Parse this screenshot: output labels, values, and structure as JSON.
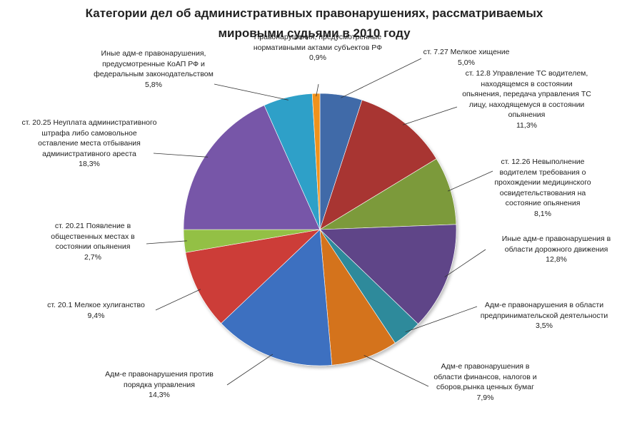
{
  "chart_data": {
    "type": "pie",
    "title_line1": "Категории дел об административных правонарушениях, рассматриваемых",
    "title_line2": "мировыми судьями в 2010 году",
    "slices": [
      {
        "label": "ст. 7.27 Мелкое хищение",
        "value": 5.0,
        "value_label": "5,0%",
        "color": "#3f6aa8"
      },
      {
        "label": "ст. 12.8 Управление ТС водителем, находящемся в состоянии опьянения, передача управления ТС лицу, находящемуся в состоянии опьянения",
        "value": 11.3,
        "value_label": "11,3%",
        "color": "#a83432"
      },
      {
        "label": "ст. 12.26 Невыполнение водителем требования о прохождении медицинского освидетельствования на состояние опьянения",
        "value": 8.1,
        "value_label": "8,1%",
        "color": "#7b9a3a"
      },
      {
        "label": "Иные адм-е правонарушения в области дорожного движения",
        "value": 12.8,
        "value_label": "12,8%",
        "color": "#5e4488"
      },
      {
        "label": "Адм-е правонарушения в области предпринимательской деятельности",
        "value": 3.5,
        "value_label": "3,5%",
        "color": "#2f8a9b"
      },
      {
        "label": "Адм-е правонарушения в области финансов, налогов и сборов,рынка ценных бумаг",
        "value": 7.9,
        "value_label": "7,9%",
        "color": "#d4731f"
      },
      {
        "label": "Адм-е правонарушения против порядка управления",
        "value": 14.3,
        "value_label": "14,3%",
        "color": "#3c70c0"
      },
      {
        "label": "ст. 20.1 Мелкое хулиганство",
        "value": 9.4,
        "value_label": "9,4%",
        "color": "#cc3c39"
      },
      {
        "label": "ст. 20.21 Появление в общественных местах в состоянии опьянения",
        "value": 2.7,
        "value_label": "2,7%",
        "color": "#93c045"
      },
      {
        "label": "ст. 20.25 Неуплата административного штрафа либо самовольное оставление места отбывания административного ареста",
        "value": 18.3,
        "value_label": "18,3%",
        "color": "#7756a8"
      },
      {
        "label": "Иные адм-е правонарушения, предусмотренные КоАП РФ и федеральным законодательством",
        "value": 5.8,
        "value_label": "5,8%",
        "color": "#2fa0c8"
      },
      {
        "label": "Правонарушения, предусмотренные нормативными актами субъектов РФ",
        "value": 0.9,
        "value_label": "0,9%",
        "color": "#f0921e"
      }
    ]
  }
}
